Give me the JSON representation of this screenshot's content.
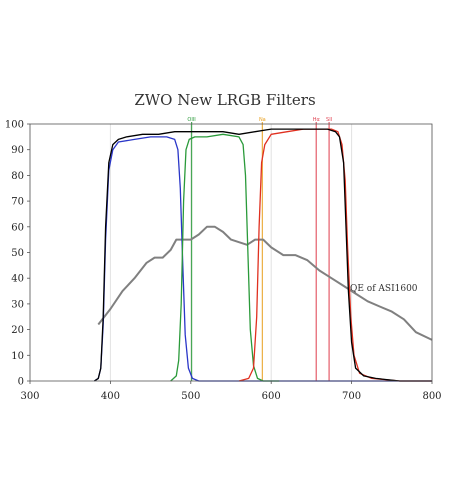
{
  "chart_data": {
    "type": "line",
    "title": "ZWO New LRGB Filters",
    "xlim": [
      300,
      800
    ],
    "ylim": [
      0,
      100
    ],
    "x_ticks": [
      300,
      400,
      500,
      600,
      700,
      800
    ],
    "y_ticks": [
      0,
      10,
      20,
      30,
      40,
      50,
      60,
      70,
      80,
      90,
      100
    ],
    "grid": "vertical",
    "series": [
      {
        "color": "#000000",
        "x": [
          380,
          385,
          388,
          391,
          394,
          398,
          403,
          410,
          420,
          440,
          460,
          480,
          500,
          520,
          540,
          560,
          580,
          600,
          620,
          640,
          660,
          670,
          680,
          685,
          690,
          693,
          696,
          700,
          705,
          715,
          730,
          760,
          800
        ],
        "y": [
          0,
          1,
          5,
          25,
          60,
          85,
          92,
          94,
          95,
          96,
          96,
          97,
          97,
          97,
          97,
          96,
          97,
          98,
          98,
          98,
          98,
          98,
          97,
          95,
          85,
          60,
          35,
          15,
          5,
          2,
          1,
          0,
          0
        ]
      },
      {
        "color": "#2a36c8",
        "x": [
          380,
          385,
          388,
          391,
          394,
          398,
          403,
          410,
          430,
          450,
          470,
          480,
          484,
          487,
          490,
          493,
          497,
          502,
          510,
          540,
          800
        ],
        "y": [
          0,
          1,
          5,
          22,
          55,
          82,
          90,
          93,
          94,
          95,
          95,
          94,
          90,
          75,
          45,
          18,
          5,
          1,
          0,
          0,
          0
        ]
      },
      {
        "color": "#2a9a3a",
        "x": [
          475,
          482,
          485,
          488,
          491,
          494,
          498,
          505,
          520,
          540,
          560,
          565,
          568,
          571,
          574,
          578,
          583,
          590,
          610
        ],
        "y": [
          0,
          2,
          8,
          30,
          70,
          90,
          94,
          95,
          95,
          96,
          95,
          92,
          80,
          50,
          20,
          6,
          1,
          0,
          0
        ]
      },
      {
        "color": "#e03020",
        "x": [
          560,
          572,
          578,
          582,
          585,
          588,
          592,
          600,
          620,
          640,
          660,
          675,
          683,
          688,
          692,
          695,
          699,
          703,
          710,
          725,
          760,
          800
        ],
        "y": [
          0,
          1,
          5,
          25,
          60,
          85,
          92,
          96,
          97,
          98,
          98,
          98,
          97,
          92,
          78,
          52,
          25,
          10,
          3,
          1,
          0,
          0
        ]
      },
      {
        "name": "QE of ASI1600",
        "color": "#808080",
        "x": [
          385,
          400,
          415,
          430,
          445,
          455,
          465,
          475,
          482,
          490,
          500,
          510,
          520,
          530,
          540,
          550,
          560,
          570,
          580,
          590,
          600,
          615,
          630,
          645,
          660,
          675,
          690,
          705,
          720,
          735,
          750,
          765,
          780,
          800
        ],
        "y": [
          22,
          28,
          35,
          40,
          46,
          48,
          48,
          51,
          55,
          55,
          55,
          57,
          60,
          60,
          58,
          55,
          54,
          53,
          55,
          55,
          52,
          49,
          49,
          47,
          43,
          40,
          37,
          34,
          31,
          29,
          27,
          24,
          19,
          16
        ]
      }
    ],
    "markers": [
      {
        "label": "OIII",
        "x": 501,
        "color": "#2a9a3a"
      },
      {
        "label": "Na",
        "x": 589,
        "color": "#e8a020"
      },
      {
        "label": "Hα",
        "x": 656,
        "color": "#e04050"
      },
      {
        "label": "SII",
        "x": 672,
        "color": "#e04050"
      }
    ],
    "annotations": [
      {
        "text": "QE of ASI1600",
        "x": 698,
        "y": 35
      }
    ]
  }
}
